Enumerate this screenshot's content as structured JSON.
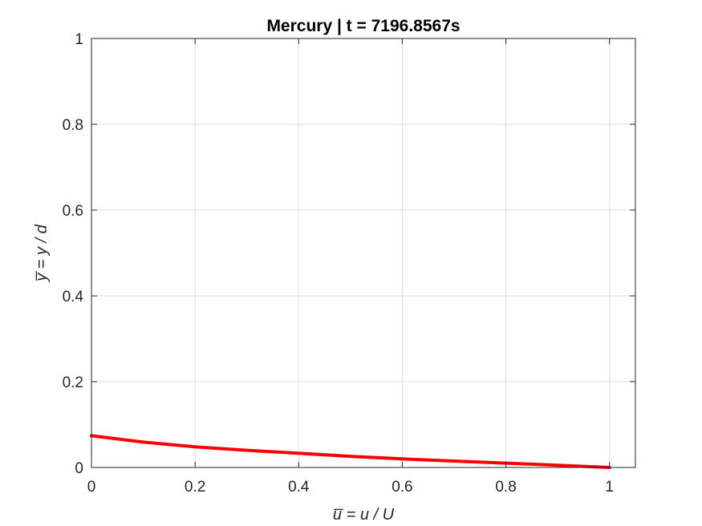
{
  "chart_data": {
    "type": "line",
    "title": "Mercury | t = 7196.8567s",
    "xlabel": "u̅ = u / U",
    "ylabel": "y̅ = y / d",
    "xlim": [
      0,
      1.05
    ],
    "ylim": [
      0,
      1
    ],
    "xticks": [
      0,
      0.2,
      0.4,
      0.6,
      0.8,
      1
    ],
    "xtick_labels": [
      "0",
      "0.2",
      "0.4",
      "0.6",
      "0.8",
      "1"
    ],
    "yticks": [
      0,
      0.2,
      0.4,
      0.6,
      0.8,
      1
    ],
    "ytick_labels": [
      "0",
      "0.2",
      "0.4",
      "0.6",
      "0.8",
      "1"
    ],
    "grid": true,
    "series": [
      {
        "color": "#ff0000",
        "x": [
          0,
          0.1,
          0.2,
          0.3,
          0.4,
          0.5,
          0.6,
          0.7,
          0.8,
          0.9,
          1.0
        ],
        "y": [
          0.074,
          0.059,
          0.048,
          0.04,
          0.033,
          0.026,
          0.02,
          0.015,
          0.01,
          0.005,
          0.0
        ]
      }
    ]
  }
}
